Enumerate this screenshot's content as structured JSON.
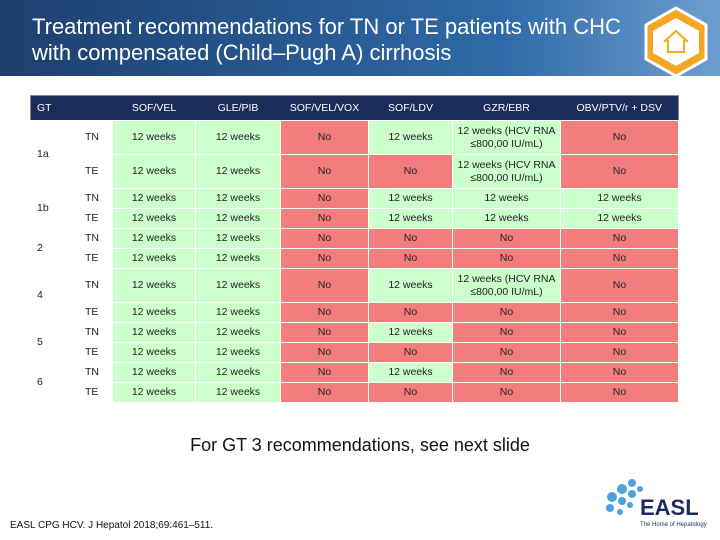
{
  "header": {
    "title": "Treatment recommendations for TN or TE patients with CHC with compensated (Child–Pugh A) cirrhosis"
  },
  "table": {
    "columns": [
      "GT",
      "",
      "SOF/VEL",
      "GLE/PIB",
      "SOF/VEL/VOX",
      "SOF/LDV",
      "GZR/EBR",
      "OBV/PTV/r + DSV"
    ],
    "groups": [
      {
        "gt": "1a",
        "rows": [
          {
            "type": "TN",
            "cells": [
              "12 weeks",
              "12 weeks",
              "No",
              "12 weeks",
              "12 weeks (HCV RNA ≤800,00 IU/mL)",
              "No"
            ],
            "colors": [
              "#ccffcc",
              "#ccffcc",
              "#f27d7d",
              "#ccffcc",
              "#ccffcc",
              "#f27d7d"
            ]
          },
          {
            "type": "TE",
            "cells": [
              "12 weeks",
              "12 weeks",
              "No",
              "No",
              "12 weeks (HCV RNA ≤800,00 IU/mL)",
              "No"
            ],
            "colors": [
              "#ccffcc",
              "#ccffcc",
              "#f27d7d",
              "#f27d7d",
              "#ccffcc",
              "#f27d7d"
            ]
          }
        ]
      },
      {
        "gt": "1b",
        "rows": [
          {
            "type": "TN",
            "cells": [
              "12 weeks",
              "12 weeks",
              "No",
              "12 weeks",
              "12 weeks",
              "12 weeks"
            ],
            "colors": [
              "#ccffcc",
              "#ccffcc",
              "#f27d7d",
              "#ccffcc",
              "#ccffcc",
              "#ccffcc"
            ]
          },
          {
            "type": "TE",
            "cells": [
              "12 weeks",
              "12 weeks",
              "No",
              "12 weeks",
              "12 weeks",
              "12 weeks"
            ],
            "colors": [
              "#ccffcc",
              "#ccffcc",
              "#f27d7d",
              "#ccffcc",
              "#ccffcc",
              "#ccffcc"
            ]
          }
        ]
      },
      {
        "gt": "2",
        "rows": [
          {
            "type": "TN",
            "cells": [
              "12 weeks",
              "12 weeks",
              "No",
              "No",
              "No",
              "No"
            ],
            "colors": [
              "#ccffcc",
              "#ccffcc",
              "#f27d7d",
              "#f27d7d",
              "#f27d7d",
              "#f27d7d"
            ]
          },
          {
            "type": "TE",
            "cells": [
              "12 weeks",
              "12 weeks",
              "No",
              "No",
              "No",
              "No"
            ],
            "colors": [
              "#ccffcc",
              "#ccffcc",
              "#f27d7d",
              "#f27d7d",
              "#f27d7d",
              "#f27d7d"
            ]
          }
        ]
      },
      {
        "gt": "4",
        "rows": [
          {
            "type": "TN",
            "cells": [
              "12 weeks",
              "12 weeks",
              "No",
              "12 weeks",
              "12 weeks (HCV RNA ≤800,00 IU/mL)",
              "No"
            ],
            "colors": [
              "#ccffcc",
              "#ccffcc",
              "#f27d7d",
              "#ccffcc",
              "#ccffcc",
              "#f27d7d"
            ]
          },
          {
            "type": "TE",
            "cells": [
              "12 weeks",
              "12 weeks",
              "No",
              "No",
              "No",
              "No"
            ],
            "colors": [
              "#ccffcc",
              "#ccffcc",
              "#f27d7d",
              "#f27d7d",
              "#f27d7d",
              "#f27d7d"
            ]
          }
        ]
      },
      {
        "gt": "5",
        "rows": [
          {
            "type": "TN",
            "cells": [
              "12 weeks",
              "12 weeks",
              "No",
              "12 weeks",
              "No",
              "No"
            ],
            "colors": [
              "#ccffcc",
              "#ccffcc",
              "#f27d7d",
              "#ccffcc",
              "#f27d7d",
              "#f27d7d"
            ]
          },
          {
            "type": "TE",
            "cells": [
              "12 weeks",
              "12 weeks",
              "No",
              "No",
              "No",
              "No"
            ],
            "colors": [
              "#ccffcc",
              "#ccffcc",
              "#f27d7d",
              "#f27d7d",
              "#f27d7d",
              "#f27d7d"
            ]
          }
        ]
      },
      {
        "gt": "6",
        "rows": [
          {
            "type": "TN",
            "cells": [
              "12 weeks",
              "12 weeks",
              "No",
              "12 weeks",
              "No",
              "No"
            ],
            "colors": [
              "#ccffcc",
              "#ccffcc",
              "#f27d7d",
              "#ccffcc",
              "#f27d7d",
              "#f27d7d"
            ]
          },
          {
            "type": "TE",
            "cells": [
              "12 weeks",
              "12 weeks",
              "No",
              "No",
              "No",
              "No"
            ],
            "colors": [
              "#ccffcc",
              "#ccffcc",
              "#f27d7d",
              "#f27d7d",
              "#f27d7d",
              "#f27d7d"
            ]
          }
        ]
      }
    ]
  },
  "note": "For GT 3 recommendations, see next slide",
  "citation": "EASL CPG HCV. J Hepatol 2018;69:461–511.",
  "logo": {
    "name": "EASL",
    "tagline": "The Home of Hepatology"
  }
}
